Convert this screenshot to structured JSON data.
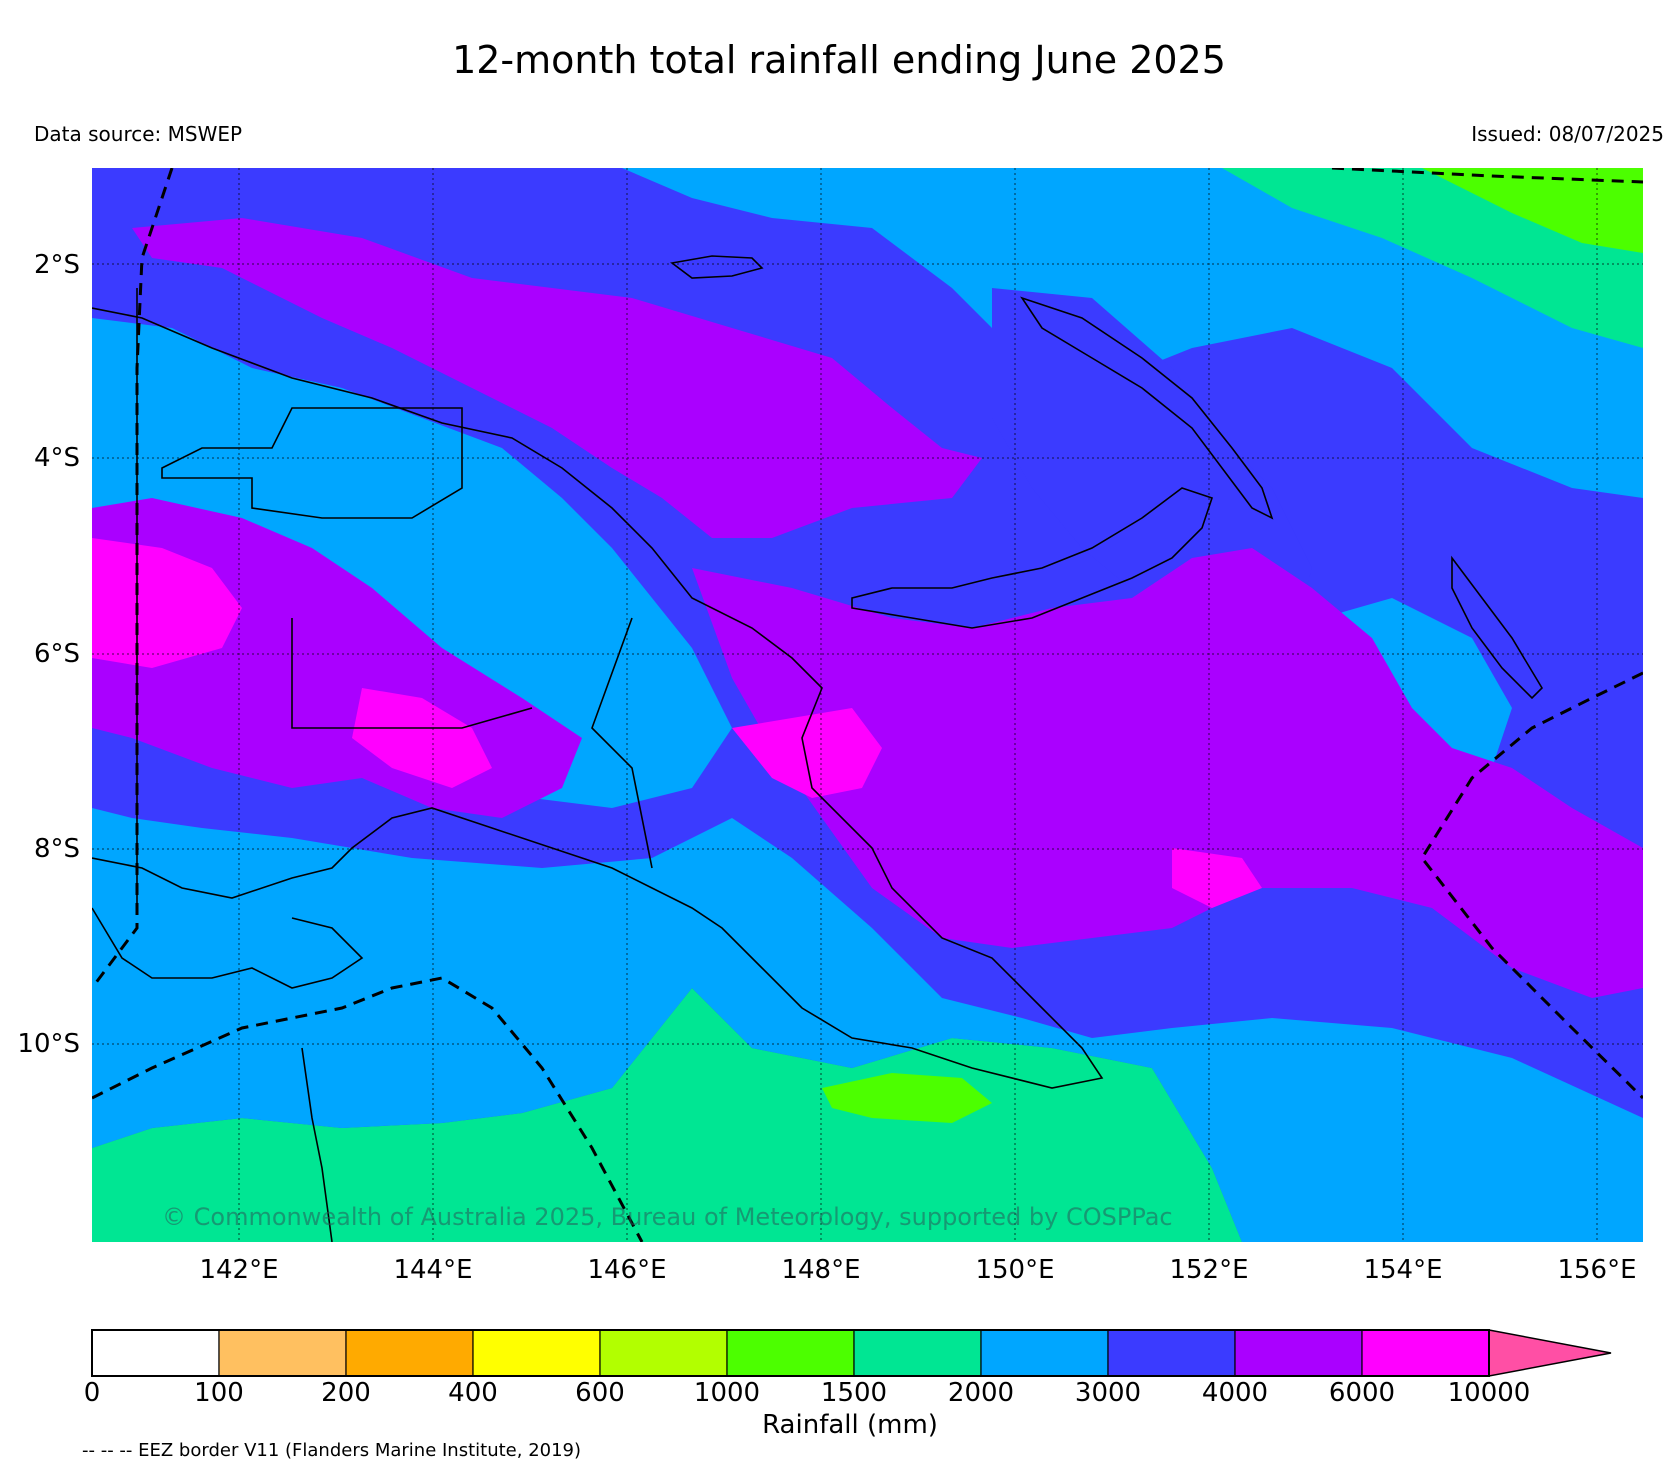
{
  "title": "12-month total rainfall ending June 2025",
  "data_source": "Data source: MSWEP",
  "issued": "Issued: 08/07/2025",
  "copyright": "© Commonwealth of Australia 2025, Bureau of Meteorology, supported by COSPPac",
  "lat_labels": [
    "2°S",
    "4°S",
    "6°S",
    "8°S",
    "10°S"
  ],
  "lon_labels": [
    "142°E",
    "144°E",
    "146°E",
    "148°E",
    "150°E",
    "152°E",
    "154°E",
    "156°E"
  ],
  "colorbar": {
    "title": "Rainfall (mm)",
    "labels": [
      "0",
      "100",
      "200",
      "400",
      "600",
      "1000",
      "1500",
      "2000",
      "3000",
      "4000",
      "6000",
      "10000"
    ],
    "colors": [
      "#ffffff",
      "#ffc060",
      "#ffaa00",
      "#ffff00",
      "#b2ff00",
      "#4cff00",
      "#00e693",
      "#00a6ff",
      "#3b3bff",
      "#aa00ff",
      "#ff00ff",
      "#ff4fa5"
    ]
  },
  "eez_note": "-- -- -- EEZ border V11 (Flanders Marine Institute, 2019)"
}
